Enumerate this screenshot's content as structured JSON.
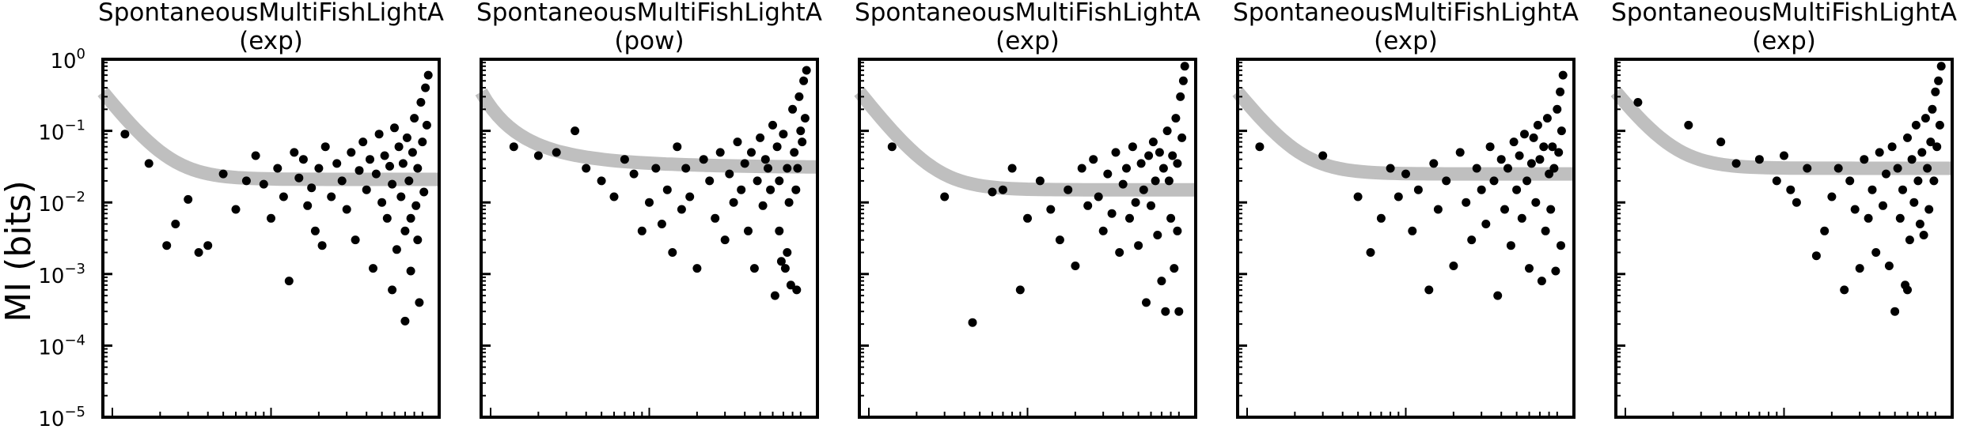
{
  "figure": {
    "ylabel": "MI (bits)",
    "y_ticks": [
      {
        "base": "10",
        "exp": "0"
      },
      {
        "base": "10",
        "exp": "−1"
      },
      {
        "base": "10",
        "exp": "−2"
      },
      {
        "base": "10",
        "exp": "−3"
      },
      {
        "base": "10",
        "exp": "−4"
      },
      {
        "base": "10",
        "exp": "−5"
      }
    ]
  },
  "colors": {
    "points": "#000000",
    "fit_band": "#bfbfbf",
    "frame": "#000000"
  },
  "chart_data": [
    {
      "type": "scatter",
      "title": "SpontaneousMultiFishLightA",
      "subtitle": "(exp)",
      "ylabel": "MI (bits)",
      "y_scale": "log",
      "x_scale": "log",
      "ylim": [
        1e-05,
        1
      ],
      "xlim": [
        0.01,
        1
      ],
      "grid": false,
      "fit": {
        "kind": "exp",
        "plateau": 0.021,
        "start": 0.35
      },
      "points": [
        [
          0.012,
          0.09
        ],
        [
          0.017,
          0.035
        ],
        [
          0.022,
          0.0025
        ],
        [
          0.025,
          0.005
        ],
        [
          0.03,
          0.011
        ],
        [
          0.035,
          0.002
        ],
        [
          0.04,
          0.0025
        ],
        [
          0.05,
          0.025
        ],
        [
          0.06,
          0.008
        ],
        [
          0.07,
          0.02
        ],
        [
          0.08,
          0.045
        ],
        [
          0.09,
          0.018
        ],
        [
          0.1,
          0.006
        ],
        [
          0.11,
          0.03
        ],
        [
          0.12,
          0.012
        ],
        [
          0.13,
          0.0008
        ],
        [
          0.14,
          0.05
        ],
        [
          0.15,
          0.022
        ],
        [
          0.16,
          0.04
        ],
        [
          0.17,
          0.009
        ],
        [
          0.18,
          0.016
        ],
        [
          0.19,
          0.004
        ],
        [
          0.2,
          0.03
        ],
        [
          0.21,
          0.0025
        ],
        [
          0.22,
          0.06
        ],
        [
          0.24,
          0.012
        ],
        [
          0.26,
          0.035
        ],
        [
          0.28,
          0.02
        ],
        [
          0.3,
          0.008
        ],
        [
          0.32,
          0.05
        ],
        [
          0.34,
          0.003
        ],
        [
          0.36,
          0.028
        ],
        [
          0.38,
          0.07
        ],
        [
          0.4,
          0.015
        ],
        [
          0.42,
          0.04
        ],
        [
          0.44,
          0.0012
        ],
        [
          0.46,
          0.025
        ],
        [
          0.48,
          0.09
        ],
        [
          0.5,
          0.01
        ],
        [
          0.52,
          0.045
        ],
        [
          0.54,
          0.006
        ],
        [
          0.56,
          0.032
        ],
        [
          0.58,
          0.018
        ],
        [
          0.6,
          0.11
        ],
        [
          0.62,
          0.0022
        ],
        [
          0.64,
          0.06
        ],
        [
          0.66,
          0.012
        ],
        [
          0.68,
          0.035
        ],
        [
          0.7,
          0.00022
        ],
        [
          0.72,
          0.08
        ],
        [
          0.74,
          0.02
        ],
        [
          0.76,
          0.0011
        ],
        [
          0.78,
          0.05
        ],
        [
          0.8,
          0.15
        ],
        [
          0.82,
          0.009
        ],
        [
          0.84,
          0.03
        ],
        [
          0.86,
          0.0004
        ],
        [
          0.88,
          0.25
        ],
        [
          0.9,
          0.07
        ],
        [
          0.92,
          0.014
        ],
        [
          0.94,
          0.4
        ],
        [
          0.96,
          0.12
        ],
        [
          0.98,
          0.6
        ],
        [
          0.58,
          0.0006
        ],
        [
          0.7,
          0.004
        ],
        [
          0.84,
          0.003
        ],
        [
          0.76,
          0.006
        ]
      ]
    },
    {
      "type": "scatter",
      "title": "SpontaneousMultiFishLightA",
      "subtitle": "(pow)",
      "ylabel": "MI (bits)",
      "y_scale": "log",
      "x_scale": "log",
      "ylim": [
        1e-05,
        1
      ],
      "xlim": [
        0.01,
        1
      ],
      "grid": false,
      "fit": {
        "kind": "pow",
        "plateau": 0.03,
        "start": 0.35
      },
      "points": [
        [
          0.014,
          0.06
        ],
        [
          0.02,
          0.045
        ],
        [
          0.026,
          0.05
        ],
        [
          0.034,
          0.1
        ],
        [
          0.04,
          0.03
        ],
        [
          0.05,
          0.02
        ],
        [
          0.06,
          0.012
        ],
        [
          0.07,
          0.04
        ],
        [
          0.08,
          0.025
        ],
        [
          0.09,
          0.004
        ],
        [
          0.1,
          0.01
        ],
        [
          0.11,
          0.03
        ],
        [
          0.12,
          0.005
        ],
        [
          0.13,
          0.015
        ],
        [
          0.14,
          0.002
        ],
        [
          0.15,
          0.06
        ],
        [
          0.16,
          0.008
        ],
        [
          0.17,
          0.03
        ],
        [
          0.18,
          0.012
        ],
        [
          0.2,
          0.0012
        ],
        [
          0.22,
          0.04
        ],
        [
          0.24,
          0.02
        ],
        [
          0.26,
          0.006
        ],
        [
          0.28,
          0.05
        ],
        [
          0.3,
          0.003
        ],
        [
          0.32,
          0.025
        ],
        [
          0.34,
          0.01
        ],
        [
          0.36,
          0.07
        ],
        [
          0.38,
          0.015
        ],
        [
          0.4,
          0.035
        ],
        [
          0.42,
          0.004
        ],
        [
          0.44,
          0.05
        ],
        [
          0.46,
          0.0012
        ],
        [
          0.48,
          0.02
        ],
        [
          0.5,
          0.08
        ],
        [
          0.52,
          0.009
        ],
        [
          0.54,
          0.04
        ],
        [
          0.56,
          0.03
        ],
        [
          0.58,
          0.015
        ],
        [
          0.6,
          0.12
        ],
        [
          0.62,
          0.0005
        ],
        [
          0.64,
          0.06
        ],
        [
          0.66,
          0.02
        ],
        [
          0.68,
          0.0015
        ],
        [
          0.7,
          0.09
        ],
        [
          0.72,
          0.0012
        ],
        [
          0.74,
          0.03
        ],
        [
          0.76,
          0.01
        ],
        [
          0.78,
          0.0007
        ],
        [
          0.8,
          0.2
        ],
        [
          0.82,
          0.05
        ],
        [
          0.84,
          0.015
        ],
        [
          0.86,
          0.03
        ],
        [
          0.88,
          0.3
        ],
        [
          0.9,
          0.1
        ],
        [
          0.92,
          0.07
        ],
        [
          0.94,
          0.5
        ],
        [
          0.96,
          0.15
        ],
        [
          0.98,
          0.7
        ],
        [
          0.85,
          0.0006
        ],
        [
          0.66,
          0.004
        ],
        [
          0.74,
          0.002
        ]
      ]
    },
    {
      "type": "scatter",
      "title": "SpontaneousMultiFishLightA",
      "subtitle": "(exp)",
      "ylabel": "MI (bits)",
      "y_scale": "log",
      "x_scale": "log",
      "ylim": [
        1e-05,
        1
      ],
      "xlim": [
        0.01,
        1
      ],
      "grid": false,
      "fit": {
        "kind": "exp",
        "plateau": 0.015,
        "start": 0.35
      },
      "points": [
        [
          0.014,
          0.06
        ],
        [
          0.03,
          0.012
        ],
        [
          0.045,
          0.00021
        ],
        [
          0.06,
          0.014
        ],
        [
          0.07,
          0.015
        ],
        [
          0.08,
          0.03
        ],
        [
          0.09,
          0.0006
        ],
        [
          0.1,
          0.006
        ],
        [
          0.12,
          0.02
        ],
        [
          0.14,
          0.008
        ],
        [
          0.16,
          0.003
        ],
        [
          0.18,
          0.015
        ],
        [
          0.2,
          0.0013
        ],
        [
          0.22,
          0.03
        ],
        [
          0.24,
          0.009
        ],
        [
          0.26,
          0.04
        ],
        [
          0.28,
          0.012
        ],
        [
          0.3,
          0.004
        ],
        [
          0.32,
          0.025
        ],
        [
          0.34,
          0.007
        ],
        [
          0.36,
          0.05
        ],
        [
          0.38,
          0.002
        ],
        [
          0.4,
          0.018
        ],
        [
          0.42,
          0.03
        ],
        [
          0.44,
          0.006
        ],
        [
          0.46,
          0.06
        ],
        [
          0.48,
          0.01
        ],
        [
          0.5,
          0.0025
        ],
        [
          0.52,
          0.035
        ],
        [
          0.54,
          0.015
        ],
        [
          0.56,
          0.0004
        ],
        [
          0.58,
          0.045
        ],
        [
          0.6,
          0.009
        ],
        [
          0.62,
          0.07
        ],
        [
          0.64,
          0.02
        ],
        [
          0.66,
          0.0035
        ],
        [
          0.68,
          0.05
        ],
        [
          0.7,
          0.0008
        ],
        [
          0.72,
          0.03
        ],
        [
          0.74,
          0.0003
        ],
        [
          0.76,
          0.1
        ],
        [
          0.78,
          0.02
        ],
        [
          0.8,
          0.006
        ],
        [
          0.82,
          0.045
        ],
        [
          0.84,
          0.0012
        ],
        [
          0.86,
          0.15
        ],
        [
          0.88,
          0.035
        ],
        [
          0.9,
          0.0003
        ],
        [
          0.92,
          0.3
        ],
        [
          0.94,
          0.08
        ],
        [
          0.96,
          0.5
        ],
        [
          0.98,
          0.8
        ],
        [
          0.88,
          0.004
        ]
      ]
    },
    {
      "type": "scatter",
      "title": "SpontaneousMultiFishLightA",
      "subtitle": "(exp)",
      "ylabel": "MI (bits)",
      "y_scale": "log",
      "x_scale": "log",
      "ylim": [
        1e-05,
        1
      ],
      "xlim": [
        0.01,
        1
      ],
      "grid": false,
      "fit": {
        "kind": "exp",
        "plateau": 0.025,
        "start": 0.35
      },
      "points": [
        [
          0.012,
          0.06
        ],
        [
          0.03,
          0.045
        ],
        [
          0.05,
          0.012
        ],
        [
          0.06,
          0.002
        ],
        [
          0.07,
          0.006
        ],
        [
          0.08,
          0.03
        ],
        [
          0.09,
          0.012
        ],
        [
          0.1,
          0.025
        ],
        [
          0.11,
          0.004
        ],
        [
          0.12,
          0.015
        ],
        [
          0.14,
          0.0006
        ],
        [
          0.15,
          0.035
        ],
        [
          0.16,
          0.008
        ],
        [
          0.18,
          0.02
        ],
        [
          0.2,
          0.0013
        ],
        [
          0.22,
          0.05
        ],
        [
          0.24,
          0.01
        ],
        [
          0.26,
          0.003
        ],
        [
          0.28,
          0.03
        ],
        [
          0.3,
          0.015
        ],
        [
          0.32,
          0.005
        ],
        [
          0.34,
          0.06
        ],
        [
          0.36,
          0.02
        ],
        [
          0.38,
          0.0005
        ],
        [
          0.4,
          0.04
        ],
        [
          0.42,
          0.008
        ],
        [
          0.44,
          0.03
        ],
        [
          0.46,
          0.0025
        ],
        [
          0.48,
          0.07
        ],
        [
          0.5,
          0.015
        ],
        [
          0.52,
          0.045
        ],
        [
          0.54,
          0.006
        ],
        [
          0.56,
          0.09
        ],
        [
          0.58,
          0.02
        ],
        [
          0.6,
          0.0012
        ],
        [
          0.62,
          0.035
        ],
        [
          0.64,
          0.08
        ],
        [
          0.66,
          0.01
        ],
        [
          0.68,
          0.12
        ],
        [
          0.7,
          0.04
        ],
        [
          0.72,
          0.0008
        ],
        [
          0.74,
          0.06
        ],
        [
          0.76,
          0.004
        ],
        [
          0.78,
          0.15
        ],
        [
          0.8,
          0.025
        ],
        [
          0.82,
          0.008
        ],
        [
          0.84,
          0.06
        ],
        [
          0.86,
          0.03
        ],
        [
          0.88,
          0.0011
        ],
        [
          0.9,
          0.2
        ],
        [
          0.92,
          0.05
        ],
        [
          0.94,
          0.35
        ],
        [
          0.96,
          0.1
        ],
        [
          0.98,
          0.6
        ],
        [
          0.95,
          0.0025
        ]
      ]
    },
    {
      "type": "scatter",
      "title": "SpontaneousMultiFishLightA",
      "subtitle": "(exp)",
      "ylabel": "MI (bits)",
      "y_scale": "log",
      "x_scale": "log",
      "ylim": [
        1e-05,
        1
      ],
      "xlim": [
        0.01,
        1
      ],
      "grid": false,
      "fit": {
        "kind": "exp",
        "plateau": 0.03,
        "start": 0.35
      },
      "points": [
        [
          0.012,
          0.25
        ],
        [
          0.025,
          0.12
        ],
        [
          0.04,
          0.07
        ],
        [
          0.05,
          0.035
        ],
        [
          0.07,
          0.04
        ],
        [
          0.09,
          0.02
        ],
        [
          0.1,
          0.045
        ],
        [
          0.11,
          0.015
        ],
        [
          0.12,
          0.01
        ],
        [
          0.14,
          0.03
        ],
        [
          0.16,
          0.0018
        ],
        [
          0.18,
          0.004
        ],
        [
          0.2,
          0.012
        ],
        [
          0.22,
          0.03
        ],
        [
          0.24,
          0.0006
        ],
        [
          0.26,
          0.02
        ],
        [
          0.28,
          0.008
        ],
        [
          0.3,
          0.0012
        ],
        [
          0.32,
          0.04
        ],
        [
          0.34,
          0.006
        ],
        [
          0.36,
          0.015
        ],
        [
          0.38,
          0.002
        ],
        [
          0.4,
          0.05
        ],
        [
          0.42,
          0.009
        ],
        [
          0.44,
          0.025
        ],
        [
          0.46,
          0.0013
        ],
        [
          0.48,
          0.06
        ],
        [
          0.5,
          0.0003
        ],
        [
          0.52,
          0.03
        ],
        [
          0.54,
          0.006
        ],
        [
          0.56,
          0.015
        ],
        [
          0.58,
          0.0007
        ],
        [
          0.6,
          0.08
        ],
        [
          0.62,
          0.003
        ],
        [
          0.64,
          0.04
        ],
        [
          0.66,
          0.01
        ],
        [
          0.68,
          0.12
        ],
        [
          0.7,
          0.02
        ],
        [
          0.72,
          0.005
        ],
        [
          0.74,
          0.05
        ],
        [
          0.76,
          0.0035
        ],
        [
          0.78,
          0.15
        ],
        [
          0.8,
          0.03
        ],
        [
          0.82,
          0.008
        ],
        [
          0.84,
          0.07
        ],
        [
          0.86,
          0.2
        ],
        [
          0.88,
          0.02
        ],
        [
          0.9,
          0.35
        ],
        [
          0.92,
          0.06
        ],
        [
          0.94,
          0.5
        ],
        [
          0.96,
          0.12
        ],
        [
          0.98,
          0.8
        ],
        [
          0.6,
          0.0006
        ]
      ]
    }
  ]
}
